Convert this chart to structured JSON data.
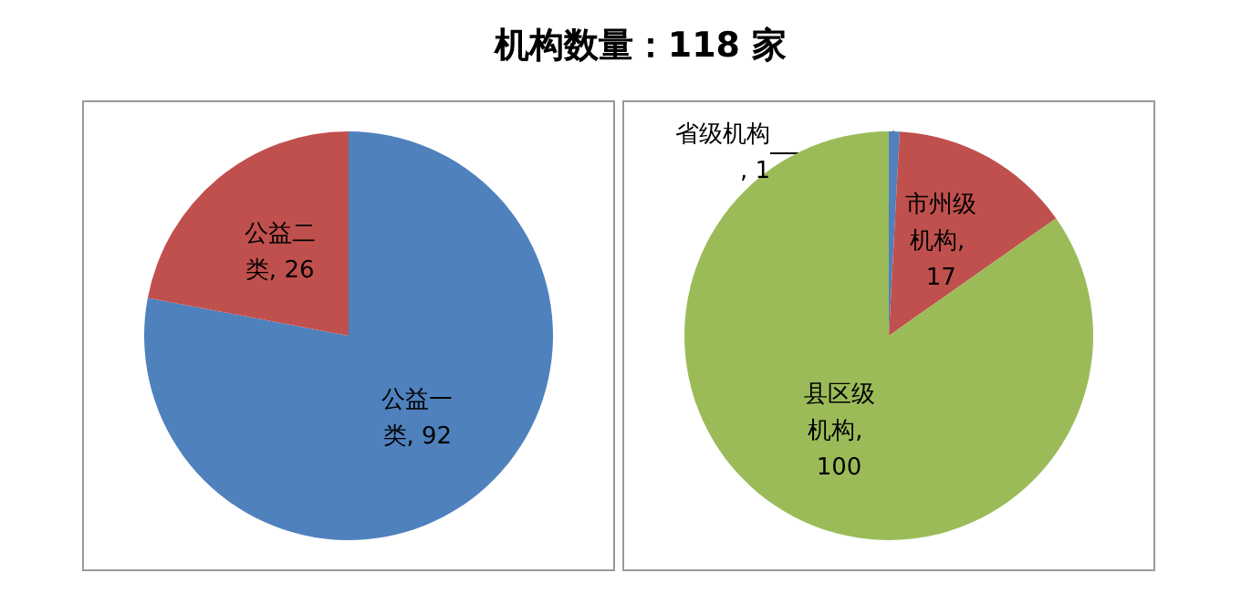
{
  "chart_data": [
    {
      "type": "pie",
      "title": "机构数量：118 家",
      "categories": [
        "公益一类",
        "公益二类"
      ],
      "values": [
        92,
        26
      ],
      "value_labels": [
        ", 92",
        ", 26"
      ],
      "colors": [
        "#4f81bd",
        "#c0504d"
      ],
      "data_labels": true,
      "legend": false
    },
    {
      "type": "pie",
      "categories": [
        "省级机构",
        "市州级机构",
        "县区级机构"
      ],
      "values": [
        1,
        17,
        100
      ],
      "value_labels": [
        ", 1",
        ", 17",
        ", 100"
      ],
      "colors": [
        "#4f81bd",
        "#c0504d",
        "#9bbb59"
      ],
      "data_labels": true,
      "legend": false
    }
  ]
}
